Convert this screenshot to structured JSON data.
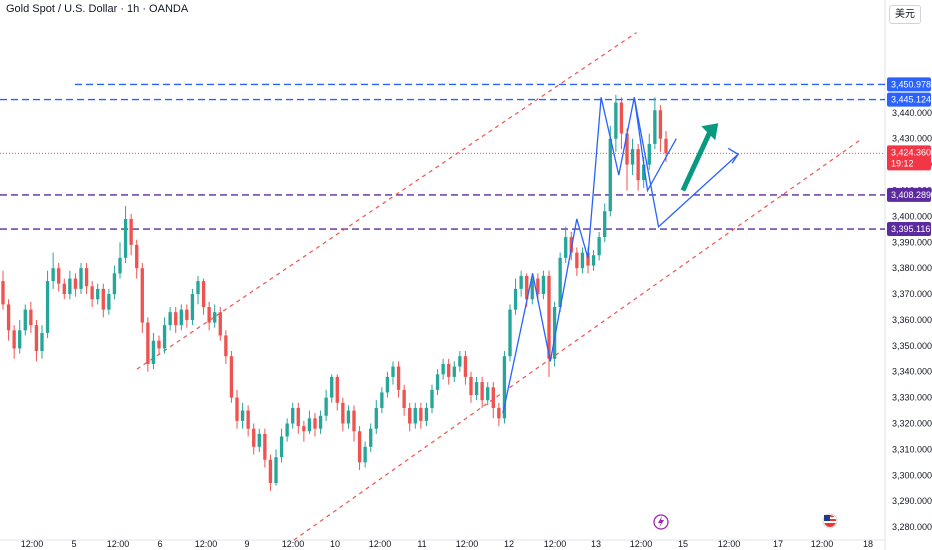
{
  "header": {
    "title": "Gold Spot / U.S. Dollar · 1h · OANDA",
    "currency": "美元"
  },
  "colors": {
    "up": "#26a69a",
    "down": "#ef5350",
    "blue_level": "#2962ff",
    "purple_level": "#5b2a9e",
    "channel": "#ef5350",
    "wave": "#2962ff",
    "arrow_green": "#089981",
    "price_tag": "#f23645"
  },
  "chart_data": {
    "type": "candlestick",
    "title": "Gold Spot / U.S. Dollar · 1h · OANDA",
    "ylim": [
      3275,
      3472
    ],
    "y_ticks": [
      3280,
      3290,
      3300,
      3310,
      3320,
      3330,
      3340,
      3350,
      3360,
      3370,
      3380,
      3390,
      3400,
      3410,
      3420,
      3430,
      3440
    ],
    "x_ticks": [
      "12:00",
      "5",
      "12:00",
      "6",
      "12:00",
      "9",
      "12:00",
      "10",
      "12:00",
      "11",
      "12:00",
      "12",
      "12:00",
      "13",
      "12:00",
      "15",
      "12:00",
      "17",
      "12:00",
      "18"
    ],
    "current_price": {
      "value": "3,424.360",
      "countdown": "19:12",
      "price": 3424.36
    },
    "levels": [
      {
        "label": "3,450.978",
        "price": 3450.978,
        "style": "blue"
      },
      {
        "label": "3,445.124",
        "price": 3445.124,
        "style": "blue"
      },
      {
        "label": "3,408.289",
        "price": 3408.289,
        "style": "purple"
      },
      {
        "label": "3,395.116",
        "price": 3395.116,
        "style": "purple"
      }
    ],
    "channel_lines": [
      {
        "from": [
          0.31,
          3341
        ],
        "to": [
          1.44,
          3471
        ]
      },
      {
        "from": [
          0.665,
          3275
        ],
        "to": [
          1.95,
          3430
        ]
      }
    ],
    "wave_path": [
      [
        1.138,
        3324
      ],
      [
        1.205,
        3378
      ],
      [
        1.245,
        3344
      ],
      [
        1.305,
        3399
      ],
      [
        1.33,
        3384
      ],
      [
        1.36,
        3446
      ],
      [
        1.4,
        3416
      ],
      [
        1.435,
        3446
      ],
      [
        1.465,
        3410
      ],
      [
        1.53,
        3430
      ]
    ],
    "wave_path_2": [
      [
        1.435,
        3446
      ],
      [
        1.49,
        3396
      ],
      [
        1.67,
        3424
      ]
    ],
    "arrow_green": {
      "from": [
        1.545,
        3410
      ],
      "to": [
        1.625,
        3436
      ]
    },
    "candles": [
      [
        3375,
        3366,
        3379,
        3364
      ],
      [
        3366,
        3356,
        3368,
        3352
      ],
      [
        3356,
        3349,
        3358,
        3345
      ],
      [
        3349,
        3356,
        3360,
        3347
      ],
      [
        3356,
        3364,
        3366,
        3354
      ],
      [
        3364,
        3358,
        3367,
        3355
      ],
      [
        3358,
        3348,
        3360,
        3344
      ],
      [
        3348,
        3355,
        3358,
        3345
      ],
      [
        3355,
        3375,
        3379,
        3353
      ],
      [
        3375,
        3380,
        3386,
        3372
      ],
      [
        3380,
        3374,
        3382,
        3371
      ],
      [
        3374,
        3370,
        3376,
        3368
      ],
      [
        3370,
        3376,
        3379,
        3368
      ],
      [
        3376,
        3372,
        3378,
        3369
      ],
      [
        3372,
        3380,
        3382,
        3370
      ],
      [
        3380,
        3373,
        3382,
        3370
      ],
      [
        3373,
        3368,
        3375,
        3365
      ],
      [
        3368,
        3372,
        3374,
        3366
      ],
      [
        3372,
        3364,
        3374,
        3361
      ],
      [
        3364,
        3370,
        3372,
        3362
      ],
      [
        3370,
        3378,
        3381,
        3368
      ],
      [
        3378,
        3384,
        3390,
        3376
      ],
      [
        3384,
        3399,
        3404,
        3382
      ],
      [
        3399,
        3389,
        3401,
        3385
      ],
      [
        3389,
        3380,
        3391,
        3376
      ],
      [
        3380,
        3359,
        3382,
        3355
      ],
      [
        3359,
        3343,
        3361,
        3340
      ],
      [
        3343,
        3352,
        3355,
        3341
      ],
      [
        3352,
        3349,
        3354,
        3347
      ],
      [
        3349,
        3358,
        3361,
        3347
      ],
      [
        3358,
        3363,
        3365,
        3356
      ],
      [
        3363,
        3358,
        3365,
        3355
      ],
      [
        3358,
        3364,
        3366,
        3356
      ],
      [
        3364,
        3360,
        3366,
        3357
      ],
      [
        3360,
        3370,
        3372,
        3358
      ],
      [
        3370,
        3375,
        3377,
        3366
      ],
      [
        3375,
        3365,
        3376,
        3362
      ],
      [
        3365,
        3359,
        3367,
        3356
      ],
      [
        3359,
        3363,
        3366,
        3357
      ],
      [
        3363,
        3354,
        3365,
        3352
      ],
      [
        3354,
        3346,
        3356,
        3343
      ],
      [
        3346,
        3330,
        3348,
        3328
      ],
      [
        3330,
        3321,
        3333,
        3318
      ],
      [
        3321,
        3325,
        3328,
        3318
      ],
      [
        3325,
        3318,
        3327,
        3315
      ],
      [
        3318,
        3311,
        3320,
        3308
      ],
      [
        3311,
        3316,
        3318,
        3309
      ],
      [
        3316,
        3306,
        3318,
        3303
      ],
      [
        3306,
        3297,
        3308,
        3294
      ],
      [
        3297,
        3307,
        3310,
        3296
      ],
      [
        3307,
        3315,
        3318,
        3305
      ],
      [
        3315,
        3320,
        3322,
        3313
      ],
      [
        3320,
        3326,
        3328,
        3318
      ],
      [
        3326,
        3319,
        3328,
        3316
      ],
      [
        3319,
        3317,
        3321,
        3313
      ],
      [
        3317,
        3322,
        3325,
        3316
      ],
      [
        3322,
        3318,
        3324,
        3315
      ],
      [
        3318,
        3323,
        3325,
        3316
      ],
      [
        3323,
        3330,
        3333,
        3321
      ],
      [
        3330,
        3338,
        3339,
        3328
      ],
      [
        3338,
        3328,
        3339,
        3325
      ],
      [
        3328,
        3320,
        3330,
        3317
      ],
      [
        3320,
        3325,
        3327,
        3318
      ],
      [
        3325,
        3317,
        3327,
        3313
      ],
      [
        3317,
        3305,
        3319,
        3302
      ],
      [
        3305,
        3311,
        3313,
        3303
      ],
      [
        3311,
        3318,
        3320,
        3309
      ],
      [
        3318,
        3326,
        3329,
        3316
      ],
      [
        3326,
        3332,
        3334,
        3324
      ],
      [
        3332,
        3338,
        3340,
        3330
      ],
      [
        3338,
        3342,
        3344,
        3335
      ],
      [
        3342,
        3333,
        3344,
        3330
      ],
      [
        3333,
        3326,
        3335,
        3323
      ],
      [
        3326,
        3320,
        3328,
        3317
      ],
      [
        3320,
        3326,
        3328,
        3318
      ],
      [
        3326,
        3321,
        3328,
        3318
      ],
      [
        3321,
        3326,
        3328,
        3319
      ],
      [
        3326,
        3333,
        3335,
        3324
      ],
      [
        3333,
        3339,
        3341,
        3331
      ],
      [
        3339,
        3343,
        3345,
        3337
      ],
      [
        3343,
        3338,
        3345,
        3335
      ],
      [
        3338,
        3342,
        3344,
        3336
      ],
      [
        3342,
        3346,
        3348,
        3340
      ],
      [
        3346,
        3338,
        3348,
        3335
      ],
      [
        3338,
        3331,
        3340,
        3328
      ],
      [
        3331,
        3336,
        3338,
        3329
      ],
      [
        3336,
        3329,
        3338,
        3326
      ],
      [
        3329,
        3334,
        3336,
        3327
      ],
      [
        3334,
        3326,
        3336,
        3322
      ],
      [
        3326,
        3322,
        3328,
        3319
      ],
      [
        3322,
        3346,
        3348,
        3320
      ],
      [
        3346,
        3364,
        3366,
        3344
      ],
      [
        3364,
        3372,
        3376,
        3362
      ],
      [
        3372,
        3377,
        3379,
        3369
      ],
      [
        3377,
        3368,
        3378,
        3365
      ],
      [
        3368,
        3376,
        3378,
        3366
      ],
      [
        3376,
        3370,
        3378,
        3367
      ],
      [
        3370,
        3377,
        3379,
        3368
      ],
      [
        3377,
        3345,
        3379,
        3338
      ],
      [
        3345,
        3365,
        3367,
        3342
      ],
      [
        3365,
        3384,
        3386,
        3363
      ],
      [
        3384,
        3392,
        3396,
        3382
      ],
      [
        3392,
        3386,
        3394,
        3383
      ],
      [
        3386,
        3380,
        3388,
        3377
      ],
      [
        3380,
        3386,
        3388,
        3378
      ],
      [
        3386,
        3381,
        3388,
        3378
      ],
      [
        3381,
        3385,
        3387,
        3379
      ],
      [
        3385,
        3392,
        3394,
        3383
      ],
      [
        3392,
        3402,
        3405,
        3390
      ],
      [
        3402,
        3430,
        3435,
        3400
      ],
      [
        3430,
        3444,
        3447,
        3425
      ],
      [
        3444,
        3432,
        3446,
        3426
      ],
      [
        3432,
        3420,
        3434,
        3410
      ],
      [
        3420,
        3426,
        3430,
        3416
      ],
      [
        3426,
        3414,
        3428,
        3410
      ],
      [
        3414,
        3420,
        3423,
        3411
      ],
      [
        3420,
        3428,
        3432,
        3418
      ],
      [
        3428,
        3441,
        3446,
        3426
      ],
      [
        3441,
        3430,
        3443,
        3425
      ],
      [
        3430,
        3424.36,
        3433,
        3421
      ]
    ]
  }
}
